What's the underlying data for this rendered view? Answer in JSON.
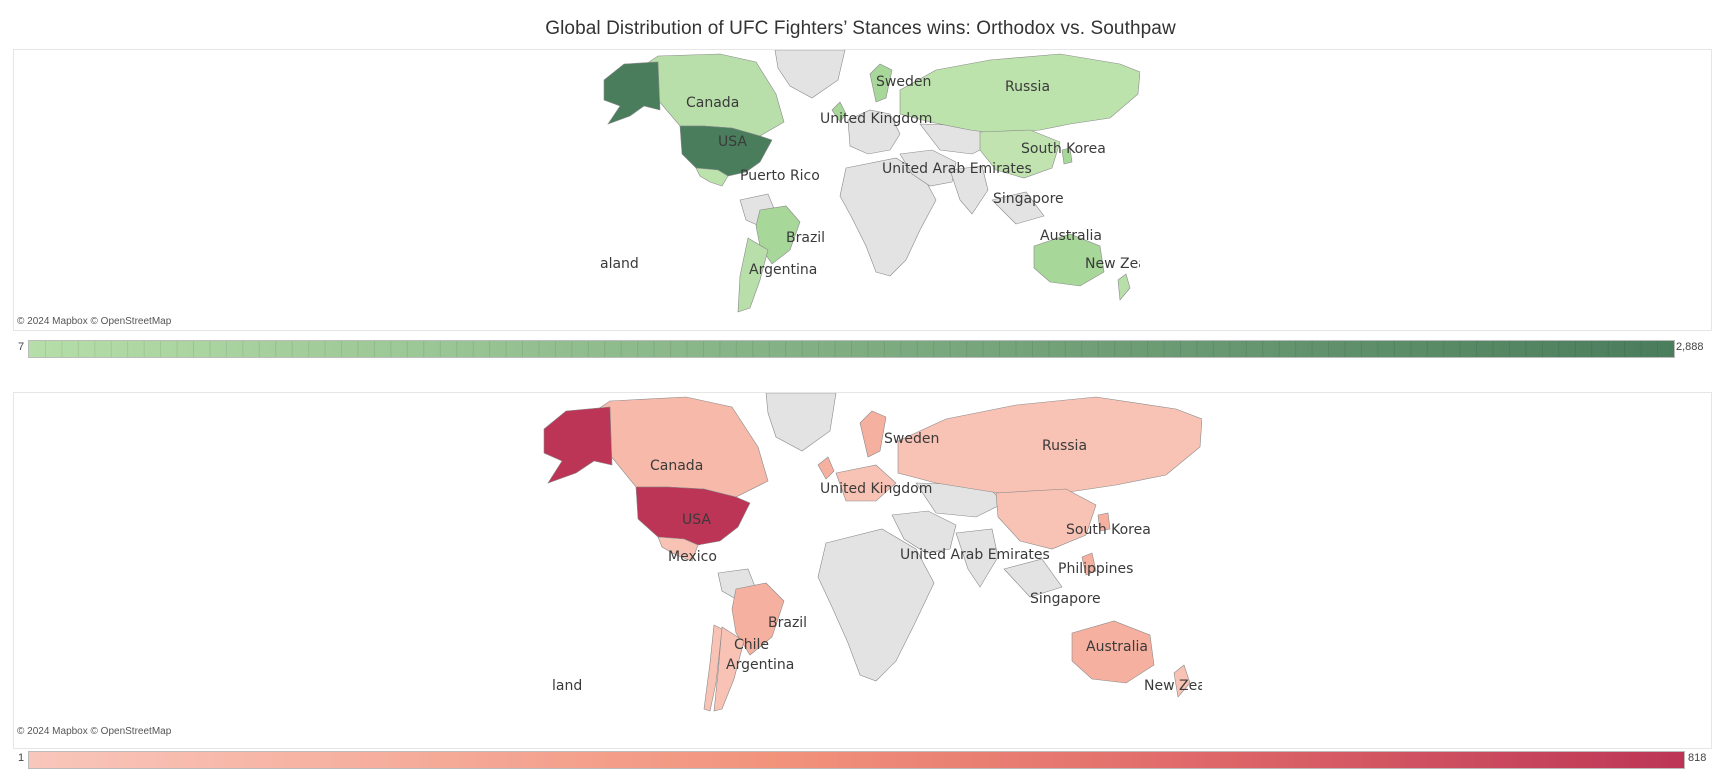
{
  "title": "Global Distribution of UFC Fighters’ Stances wins: Orthodox vs. Southpaw",
  "attribution": "© 2024 Mapbox  © OpenStreetMap",
  "maps": [
    {
      "stance": "Orthodox",
      "color_low": "#b5dea8",
      "color_high": "#4a7d5c",
      "legend_min": "7",
      "legend_max": "2,888",
      "labels": [
        "Canada",
        "USA",
        "Puerto Rico",
        "Brazil",
        "Argentina",
        "Sweden",
        "United Kingdom",
        "Russia",
        "South Korea",
        "United Arab Emirates",
        "Singapore",
        "Australia",
        "New Zea",
        "aland"
      ]
    },
    {
      "stance": "Southpaw",
      "color_low": "#f9c6bb",
      "color_high": "#bc3556",
      "legend_min": "1",
      "legend_max": "818",
      "labels": [
        "Canada",
        "USA",
        "Mexico",
        "Brazil",
        "Chile",
        "Argentina",
        "Sweden",
        "United Kingdom",
        "Russia",
        "South Korea",
        "United Arab Emirates",
        "Philippines",
        "Singapore",
        "Australia",
        "New Zea",
        "land"
      ]
    }
  ]
}
